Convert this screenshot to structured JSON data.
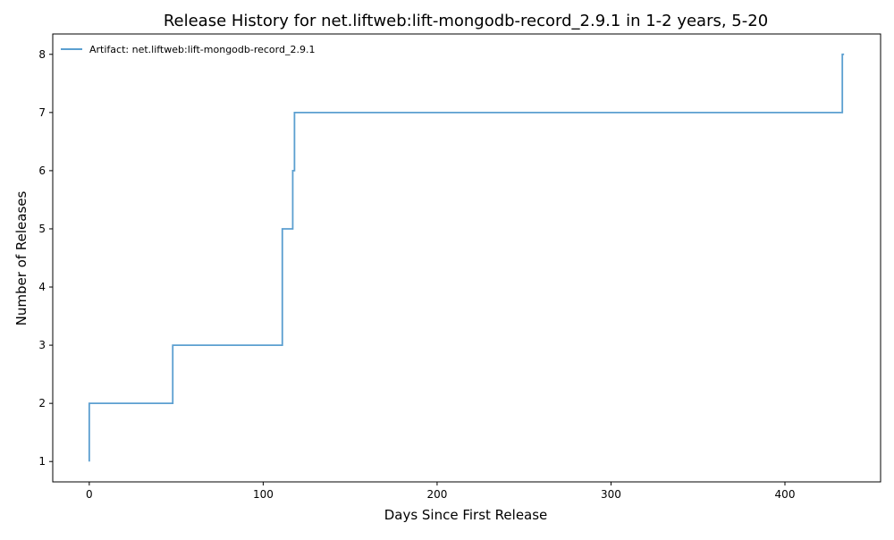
{
  "chart_data": {
    "type": "line",
    "drawstyle": "steps-post",
    "title": "Release History for net.liftweb:lift-mongodb-record_2.9.1 in 1-2 years, 5-20",
    "xlabel": "Days Since First Release",
    "ylabel": "Number of Releases",
    "xlim": [
      -21,
      455
    ],
    "ylim": [
      0.65,
      8.35
    ],
    "xticks": [
      0,
      100,
      200,
      300,
      400
    ],
    "yticks": [
      1,
      2,
      3,
      4,
      5,
      6,
      7,
      8
    ],
    "grid": false,
    "legend_position": "top-left",
    "series": [
      {
        "name": "Artifact: net.liftweb:lift-mongodb-record_2.9.1",
        "color": "#5b9fd0",
        "x": [
          0,
          0,
          48,
          111,
          117,
          118,
          433,
          434
        ],
        "y": [
          1,
          2,
          3,
          5,
          6,
          7,
          8,
          8
        ]
      }
    ]
  }
}
